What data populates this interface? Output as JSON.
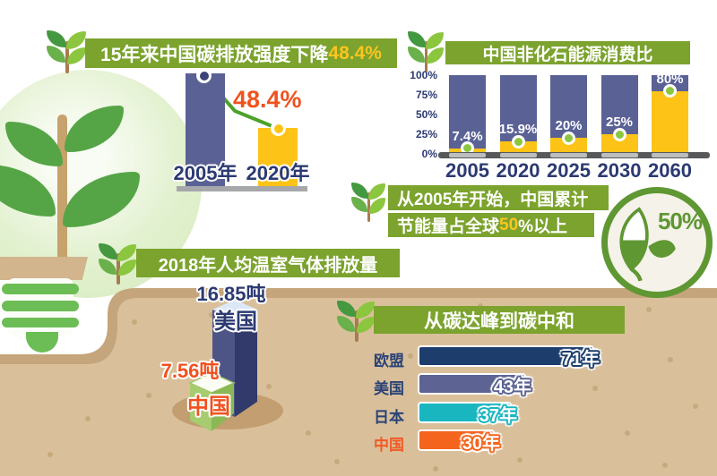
{
  "palette": {
    "banner_green": "#7ba32d",
    "bar_blue": "#5a6195",
    "bar_yellow": "#fdc317",
    "accent_orange": "#f0521f",
    "navy_text": "#2c3a72",
    "highlight_yellow": "#fdc51f",
    "dot_green": "#8cc63f",
    "line_green": "#4ca22a",
    "soil": "#d9c09b",
    "soil_edge": "#c5a57b",
    "badge_green": "#5f9733"
  },
  "panels": {
    "intensity": {
      "header_prefix": "15年来中国碳排放强度下降",
      "header_highlight": "48.4%",
      "annotation": "48.4%"
    },
    "nonfossil": {
      "header": "中国非化石能源消费比"
    },
    "savings": {
      "line1": "从2005年开始，中国累计",
      "line2_prefix": "节能量占全球",
      "line2_highlight": "50",
      "line2_suffix": "%以上",
      "badge_value": "50%"
    },
    "percapita": {
      "header": "2018年人均温室气体排放量"
    },
    "timeline": {
      "header": "从碳达峰到碳中和"
    }
  },
  "chart_data": [
    {
      "type": "bar",
      "title": "15年来中国碳排放强度下降48.4%",
      "categories": [
        "2005年",
        "2020年"
      ],
      "values": [
        100,
        51.6
      ],
      "value_note": "relative carbon intensity, 2005 = 100, 2020 is 48.4% lower",
      "annotation": "48.4%",
      "colors": [
        "#5a6195",
        "#fdc317"
      ]
    },
    {
      "type": "bar",
      "subtype": "stacked-percent",
      "title": "中国非化石能源消费比",
      "categories": [
        "2005",
        "2020",
        "2025",
        "2030",
        "2060"
      ],
      "values": [
        7.4,
        15.9,
        20,
        25,
        80
      ],
      "labels": [
        "7.4%",
        "15.9%",
        "20%",
        "25%",
        "80%"
      ],
      "ylim": [
        0,
        100
      ],
      "yticks": [
        "100%",
        "75%",
        "50%",
        "25%",
        "0%"
      ],
      "colors": {
        "remainder": "#5a6195",
        "share": "#fdc317",
        "marker": "#8cc63f"
      }
    },
    {
      "type": "bar",
      "subtype": "3d-column",
      "title": "2018年人均温室气体排放量",
      "categories": [
        "美国",
        "中国"
      ],
      "values": [
        16.85,
        7.56
      ],
      "labels": [
        "16.85吨",
        "7.56吨"
      ],
      "unit": "吨",
      "colors": [
        "#4d5586",
        "#a6cc6f"
      ]
    },
    {
      "type": "bar",
      "subtype": "horizontal",
      "title": "从碳达峰到碳中和",
      "categories": [
        "欧盟",
        "美国",
        "日本",
        "中国"
      ],
      "values": [
        71,
        43,
        37,
        30
      ],
      "labels": [
        "71年",
        "43年",
        "37年",
        "30年"
      ],
      "unit": "年",
      "xmax": 71,
      "colors": [
        "#1d3e6d",
        "#5d6493",
        "#1ab6c0",
        "#f4641c"
      ],
      "label_colors": [
        "#2a4377",
        "#2a4377",
        "#2a4377",
        "#f15a24"
      ]
    }
  ]
}
